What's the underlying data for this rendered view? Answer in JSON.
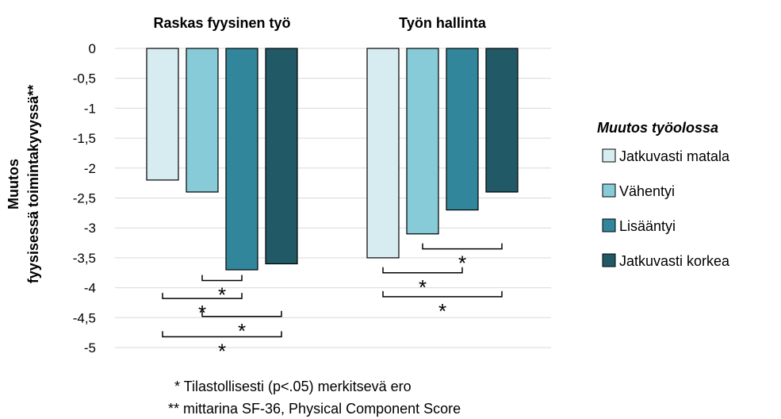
{
  "chart_data": {
    "type": "bar",
    "ylabel_lines": [
      "Muutos",
      "fyysisessä toimintakyvyssä**"
    ],
    "ylim": [
      -5,
      0
    ],
    "yticks": [
      0,
      -0.5,
      -1,
      -1.5,
      -2,
      -2.5,
      -3,
      -3.5,
      -4,
      -4.5,
      -5
    ],
    "ytick_labels": [
      "0",
      "-0,5",
      "-1",
      "-1,5",
      "-2",
      "-2,5",
      "-3",
      "-3,5",
      "-4",
      "-4,5",
      "-5"
    ],
    "grid": true,
    "groups": [
      "Raskas fyysinen työ",
      "Työn hallinta"
    ],
    "series": [
      {
        "name": "Jatkuvasti matala",
        "values": [
          -2.2,
          -3.5
        ],
        "color": "#d6ecf1"
      },
      {
        "name": "Vähentyi",
        "values": [
          -2.4,
          -3.1
        ],
        "color": "#87cbd9"
      },
      {
        "name": "Lisääntyi",
        "values": [
          -3.7,
          -2.7
        ],
        "color": "#31869b"
      },
      {
        "name": "Jatkuvasti korkea",
        "values": [
          -3.6,
          -2.4
        ],
        "color": "#215967"
      }
    ],
    "legend_title": "Muutos työolossa",
    "legend_position": "right",
    "significance": [
      {
        "group": 0,
        "from": 1,
        "to": 2,
        "level": -3.88,
        "label": "*"
      },
      {
        "group": 0,
        "from": 0,
        "to": 2,
        "level": -4.18,
        "label": "*"
      },
      {
        "group": 0,
        "from": 1,
        "to": 3,
        "level": -4.48,
        "label": "*"
      },
      {
        "group": 0,
        "from": 0,
        "to": 3,
        "level": -4.82,
        "label": "*"
      },
      {
        "group": 1,
        "from": 1,
        "to": 3,
        "level": -3.35,
        "label": "*"
      },
      {
        "group": 1,
        "from": 0,
        "to": 2,
        "level": -3.75,
        "label": "*"
      },
      {
        "group": 1,
        "from": 0,
        "to": 3,
        "level": -4.15,
        "label": "*"
      }
    ]
  },
  "notes": {
    "line1": "* Tilastollisesti (p<.05) merkitsevä ero",
    "line2": "** mittarina SF-36, Physical Component Score"
  }
}
